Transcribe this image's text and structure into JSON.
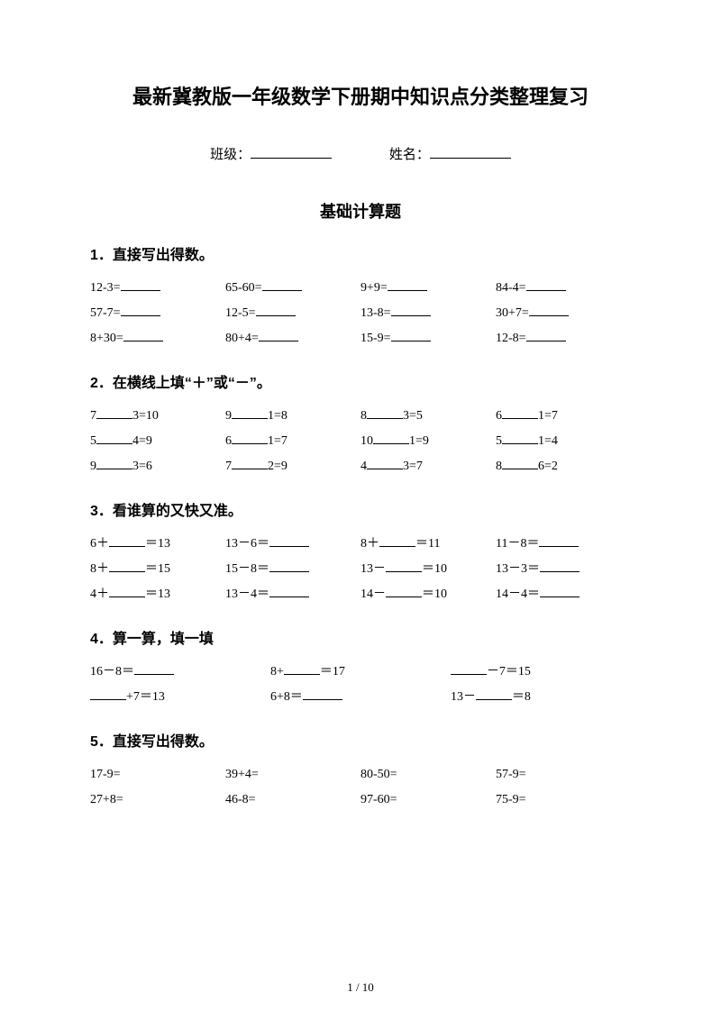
{
  "title": "最新冀教版一年级数学下册期中知识点分类整理复习",
  "class_label": "班级：",
  "name_label": "姓名：",
  "section_title": "基础计算题",
  "q1": {
    "heading": "1．直接写出得数。",
    "rows": [
      [
        "12-3=",
        "65-60=",
        "9+9=",
        "84-4="
      ],
      [
        "57-7=",
        "12-5=",
        "13-8=",
        "30+7="
      ],
      [
        "8+30=",
        "80+4=",
        "15-9=",
        "12-8="
      ]
    ]
  },
  "q2": {
    "heading": "2．在横线上填“＋”或“－”。",
    "rows": [
      [
        [
          "7",
          "3=10"
        ],
        [
          "9",
          "1=8"
        ],
        [
          "8",
          "3=5"
        ],
        [
          "6",
          "1=7"
        ]
      ],
      [
        [
          "5",
          "4=9"
        ],
        [
          "6",
          "1=7"
        ],
        [
          "10",
          "1=9"
        ],
        [
          "5",
          "1=4"
        ]
      ],
      [
        [
          "9",
          "3=6"
        ],
        [
          "7",
          "2=9"
        ],
        [
          "4",
          "3=7"
        ],
        [
          "8",
          "6=2"
        ]
      ]
    ]
  },
  "q3": {
    "heading": "3．看谁算的又快又准。",
    "rows": [
      [
        {
          "t": "mid",
          "a": "6＋",
          "b": "＝13"
        },
        {
          "t": "end",
          "a": "13－6＝"
        },
        {
          "t": "mid",
          "a": "8＋",
          "b": "＝11"
        },
        {
          "t": "end",
          "a": "11－8＝"
        }
      ],
      [
        {
          "t": "mid",
          "a": "8＋",
          "b": "＝15"
        },
        {
          "t": "end",
          "a": "15－8＝"
        },
        {
          "t": "mid",
          "a": "13－",
          "b": "＝10"
        },
        {
          "t": "end",
          "a": "13－3＝"
        }
      ],
      [
        {
          "t": "mid",
          "a": "4＋",
          "b": "＝13"
        },
        {
          "t": "end",
          "a": "13－4＝"
        },
        {
          "t": "mid",
          "a": "14－",
          "b": "＝10"
        },
        {
          "t": "end",
          "a": "14－4＝"
        }
      ]
    ]
  },
  "q4": {
    "heading": "4．算一算，填一填",
    "rows": [
      [
        {
          "t": "end",
          "a": "16－8＝"
        },
        {
          "t": "mid",
          "a": "8+",
          "b": "＝17"
        },
        {
          "t": "pre",
          "b": "－7＝15"
        }
      ],
      [
        {
          "t": "pre",
          "b": "+7＝13"
        },
        {
          "t": "end",
          "a": "6+8＝"
        },
        {
          "t": "mid",
          "a": "13－",
          "b": "＝8"
        }
      ]
    ]
  },
  "q5": {
    "heading": "5．直接写出得数。",
    "rows": [
      [
        "17-9=",
        "39+4=",
        "80-50=",
        "57-9="
      ],
      [
        "27+8=",
        "46-8=",
        "97-60=",
        "75-9="
      ]
    ]
  },
  "footer": "1 / 10"
}
